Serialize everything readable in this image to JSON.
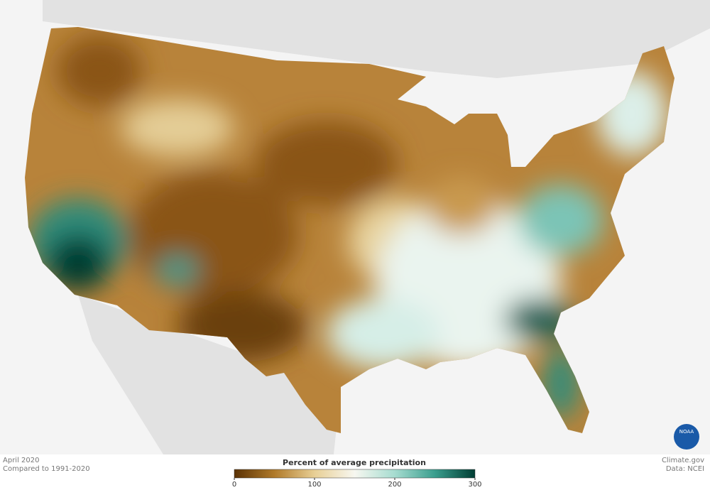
{
  "map": {
    "date": "April 2020",
    "baseline": "Compared to 1991-2020",
    "credit": "Climate.gov",
    "source": "Data: NCEI",
    "logo": "NOAA"
  },
  "legend": {
    "title": "Percent of average precipitation",
    "range": [
      0,
      300
    ],
    "ticks": [
      0,
      100,
      200,
      300
    ],
    "colors": [
      "#5a3205",
      "#b07a2a",
      "#e8cf95",
      "#f7f7f0",
      "#a6dcd0",
      "#3a9e8e",
      "#003d33"
    ]
  }
}
